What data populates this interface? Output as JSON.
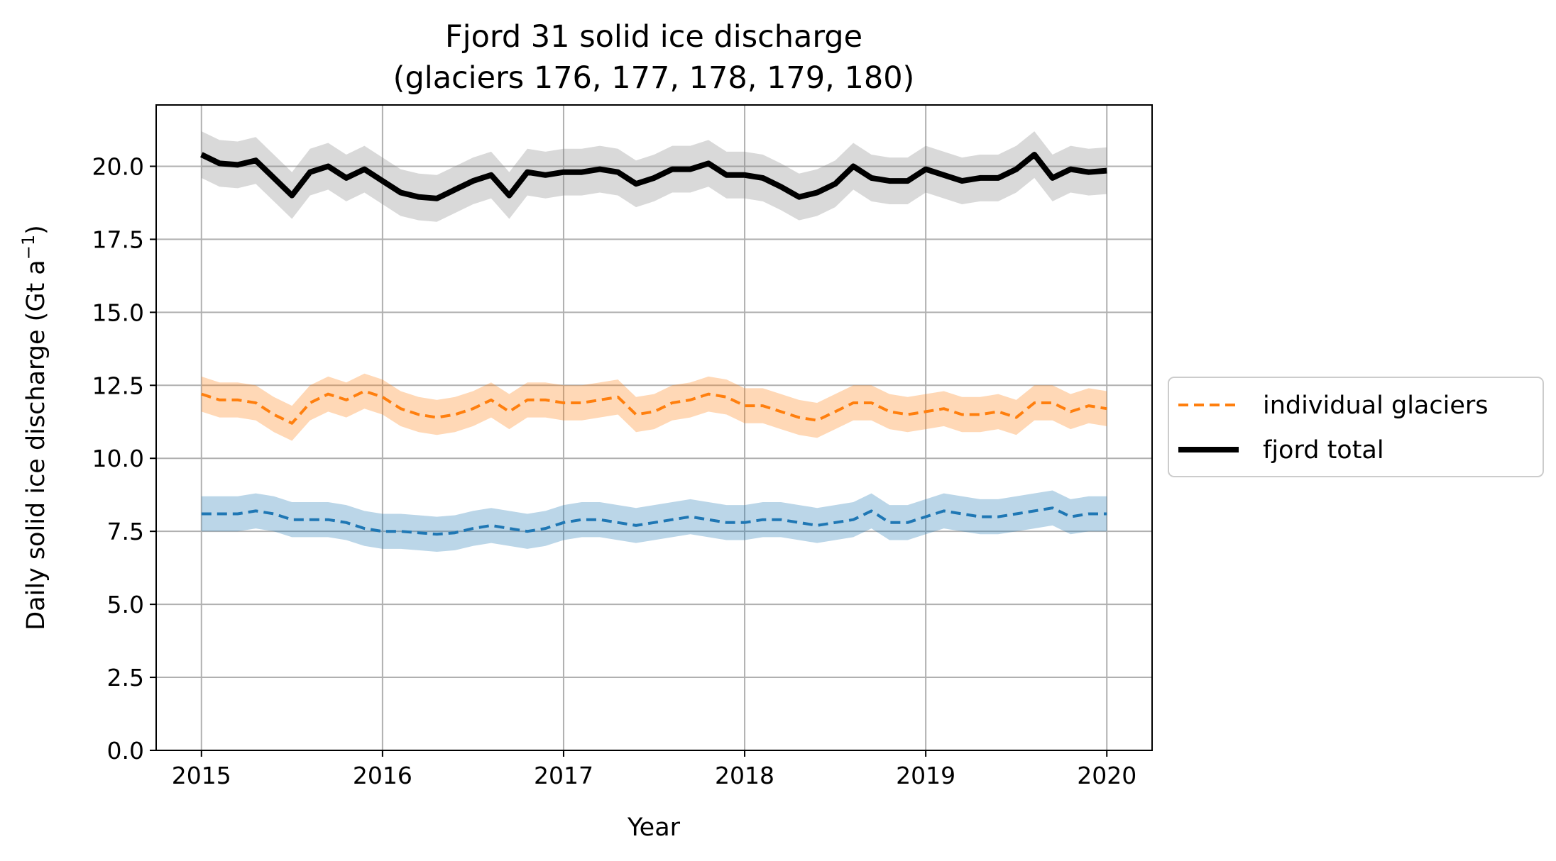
{
  "chart_data": {
    "type": "line",
    "title_line1": "Fjord 31 solid ice discharge",
    "title_line2": "(glaciers 176, 177, 178, 179, 180)",
    "xlabel": "Year",
    "ylabel": "Daily solid ice discharge (Gt a",
    "ylabel_sup": "−1",
    "ylabel_end": ")",
    "xlim": [
      2014.75,
      2020.25
    ],
    "ylim": [
      0,
      22.1
    ],
    "grid": true,
    "x_ticks": [
      2015,
      2016,
      2017,
      2018,
      2019,
      2020
    ],
    "x_tick_labels": [
      "2015",
      "2016",
      "2017",
      "2018",
      "2019",
      "2020"
    ],
    "y_ticks": [
      0,
      2.5,
      5,
      7.5,
      10,
      12.5,
      15,
      17.5,
      20
    ],
    "y_tick_labels": [
      "0.0",
      "2.5",
      "5.0",
      "7.5",
      "10.0",
      "12.5",
      "15.0",
      "17.5",
      "20.0"
    ],
    "legend_position": "right, outside",
    "legend": [
      {
        "label": "individual glaciers",
        "style": "dashed",
        "color": "#ff7f0e"
      },
      {
        "label": "fjord total",
        "style": "solid",
        "color": "#000000"
      }
    ],
    "series": [
      {
        "style": "dashed",
        "color": "#1f77b4",
        "band_color": "#1f77b4",
        "uncertainty": 0.6,
        "x": [
          2015.0,
          2015.1,
          2015.2,
          2015.3,
          2015.4,
          2015.5,
          2015.6,
          2015.7,
          2015.8,
          2015.9,
          2016.0,
          2016.1,
          2016.2,
          2016.3,
          2016.4,
          2016.5,
          2016.6,
          2016.7,
          2016.8,
          2016.9,
          2017.0,
          2017.1,
          2017.2,
          2017.3,
          2017.4,
          2017.5,
          2017.6,
          2017.7,
          2017.8,
          2017.9,
          2018.0,
          2018.1,
          2018.2,
          2018.3,
          2018.4,
          2018.5,
          2018.6,
          2018.7,
          2018.8,
          2018.9,
          2019.0,
          2019.1,
          2019.2,
          2019.3,
          2019.4,
          2019.5,
          2019.6,
          2019.7,
          2019.8,
          2019.9,
          2020.0
        ],
        "y": [
          8.1,
          8.1,
          8.1,
          8.2,
          8.1,
          7.9,
          7.9,
          7.9,
          7.8,
          7.6,
          7.5,
          7.5,
          7.45,
          7.4,
          7.45,
          7.6,
          7.7,
          7.6,
          7.5,
          7.6,
          7.8,
          7.9,
          7.9,
          7.8,
          7.7,
          7.8,
          7.9,
          8.0,
          7.9,
          7.8,
          7.8,
          7.9,
          7.9,
          7.8,
          7.7,
          7.8,
          7.9,
          8.2,
          7.8,
          7.8,
          8.0,
          8.2,
          8.1,
          8.0,
          8.0,
          8.1,
          8.2,
          8.3,
          8.0,
          8.1,
          8.1
        ]
      },
      {
        "style": "dashed",
        "color": "#ff7f0e",
        "band_color": "#ff7f0e",
        "uncertainty": 0.6,
        "x": [
          2015.0,
          2015.1,
          2015.2,
          2015.3,
          2015.4,
          2015.5,
          2015.6,
          2015.7,
          2015.8,
          2015.9,
          2016.0,
          2016.1,
          2016.2,
          2016.3,
          2016.4,
          2016.5,
          2016.6,
          2016.7,
          2016.8,
          2016.9,
          2017.0,
          2017.1,
          2017.2,
          2017.3,
          2017.4,
          2017.5,
          2017.6,
          2017.7,
          2017.8,
          2017.9,
          2018.0,
          2018.1,
          2018.2,
          2018.3,
          2018.4,
          2018.5,
          2018.6,
          2018.7,
          2018.8,
          2018.9,
          2019.0,
          2019.1,
          2019.2,
          2019.3,
          2019.4,
          2019.5,
          2019.6,
          2019.7,
          2019.8,
          2019.9,
          2020.0
        ],
        "y": [
          12.2,
          12.0,
          12.0,
          11.9,
          11.5,
          11.2,
          11.9,
          12.2,
          12.0,
          12.3,
          12.1,
          11.7,
          11.5,
          11.4,
          11.5,
          11.7,
          12.0,
          11.6,
          12.0,
          12.0,
          11.9,
          11.9,
          12.0,
          12.1,
          11.5,
          11.6,
          11.9,
          12.0,
          12.2,
          12.1,
          11.8,
          11.8,
          11.6,
          11.4,
          11.3,
          11.6,
          11.9,
          11.9,
          11.6,
          11.5,
          11.6,
          11.7,
          11.5,
          11.5,
          11.6,
          11.4,
          11.9,
          11.9,
          11.6,
          11.8,
          11.7
        ]
      },
      {
        "style": "solid",
        "color": "#000000",
        "band_color": "#808080",
        "uncertainty": 0.8,
        "x": [
          2015.0,
          2015.1,
          2015.2,
          2015.3,
          2015.4,
          2015.5,
          2015.6,
          2015.7,
          2015.8,
          2015.9,
          2016.0,
          2016.1,
          2016.2,
          2016.3,
          2016.4,
          2016.5,
          2016.6,
          2016.7,
          2016.8,
          2016.9,
          2017.0,
          2017.1,
          2017.2,
          2017.3,
          2017.4,
          2017.5,
          2017.6,
          2017.7,
          2017.8,
          2017.9,
          2018.0,
          2018.1,
          2018.2,
          2018.3,
          2018.4,
          2018.5,
          2018.6,
          2018.7,
          2018.8,
          2018.9,
          2019.0,
          2019.1,
          2019.2,
          2019.3,
          2019.4,
          2019.5,
          2019.6,
          2019.7,
          2019.8,
          2019.9,
          2020.0
        ],
        "y": [
          20.4,
          20.1,
          20.05,
          20.2,
          19.6,
          19.0,
          19.8,
          20.0,
          19.6,
          19.9,
          19.5,
          19.1,
          18.95,
          18.9,
          19.2,
          19.5,
          19.7,
          19.0,
          19.8,
          19.7,
          19.8,
          19.8,
          19.9,
          19.8,
          19.4,
          19.6,
          19.9,
          19.9,
          20.1,
          19.7,
          19.7,
          19.6,
          19.3,
          18.95,
          19.1,
          19.4,
          20.0,
          19.6,
          19.5,
          19.5,
          19.9,
          19.7,
          19.5,
          19.6,
          19.6,
          19.9,
          20.4,
          19.6,
          19.9,
          19.8,
          19.85
        ]
      }
    ]
  }
}
